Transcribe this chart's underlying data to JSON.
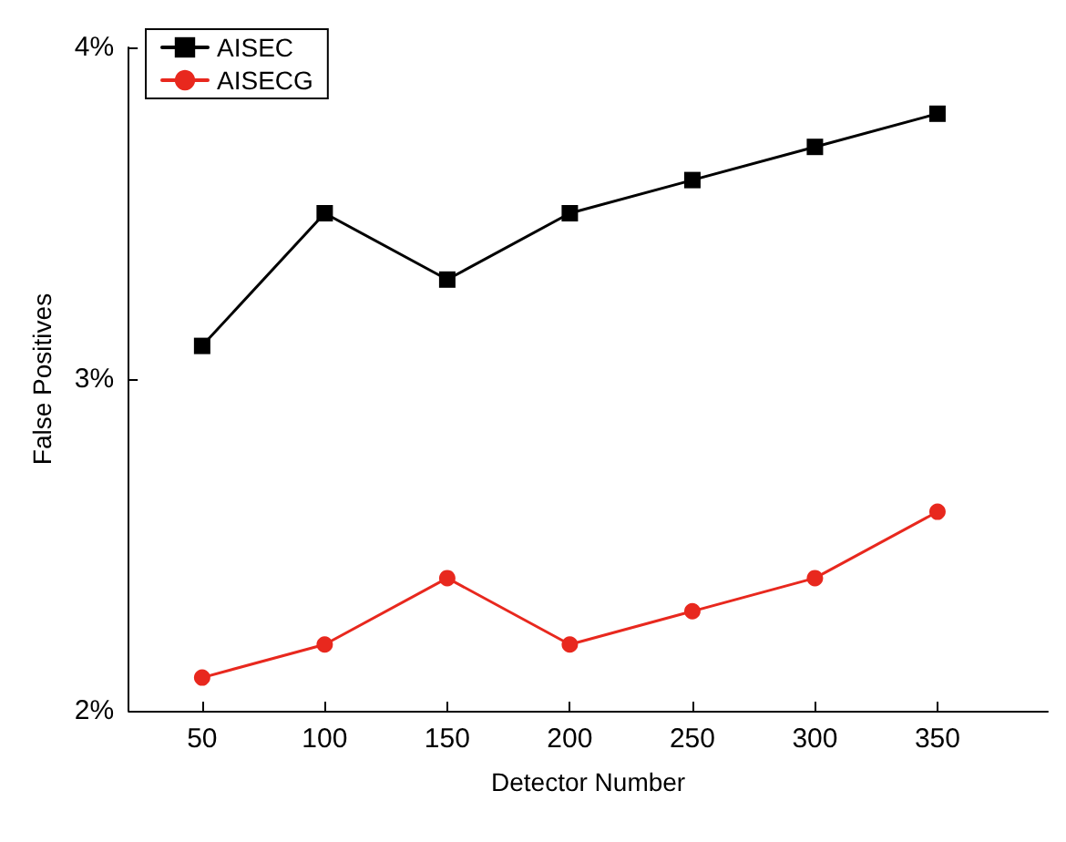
{
  "chart_data": {
    "type": "line",
    "xlabel": "Detector Number",
    "ylabel": "False Positives",
    "x": [
      50,
      100,
      150,
      200,
      250,
      300,
      350
    ],
    "series": [
      {
        "name": "AISEC",
        "color": "#000000",
        "marker": "square",
        "values": [
          3.1,
          3.5,
          3.3,
          3.5,
          3.6,
          3.7,
          3.8
        ]
      },
      {
        "name": "AISECG",
        "color": "#e8281e",
        "marker": "circle",
        "values": [
          2.1,
          2.2,
          2.4,
          2.2,
          2.3,
          2.4,
          2.6
        ]
      }
    ],
    "xlim": [
      20,
      395
    ],
    "xticks": [
      50,
      100,
      150,
      200,
      250,
      300,
      350
    ],
    "ylim": [
      2,
      4
    ],
    "yticks": [
      {
        "value": 2,
        "label": "2%"
      },
      {
        "value": 3,
        "label": "3%"
      },
      {
        "value": 4,
        "label": "4%"
      }
    ],
    "grid": false,
    "legend": "top left",
    "line_style": "solid"
  }
}
